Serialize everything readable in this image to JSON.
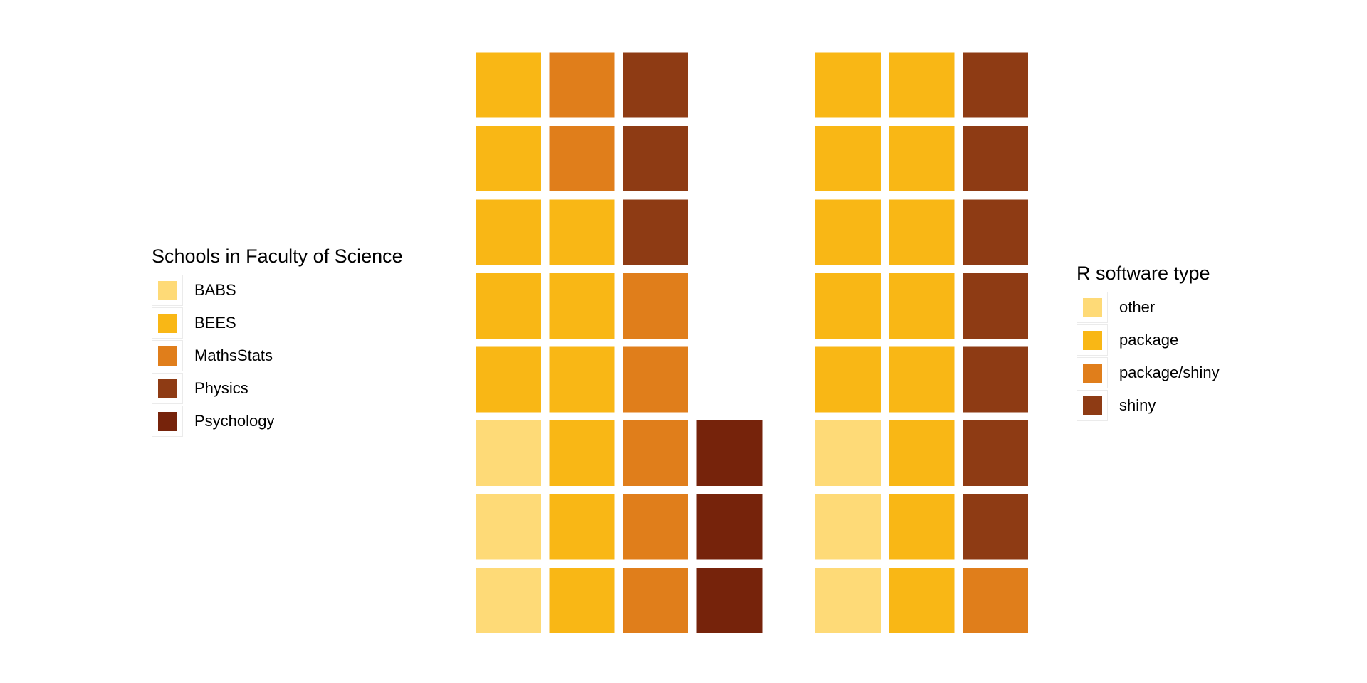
{
  "chart_data": [
    {
      "type": "waffle",
      "legend": {
        "title": "Schools in Faculty of Science",
        "placement": "left",
        "items": [
          {
            "label": "BABS",
            "color": "#FEDA77"
          },
          {
            "label": "BEES",
            "color": "#F9B715"
          },
          {
            "label": "MathsStats",
            "color": "#E07E1B"
          },
          {
            "label": "Physics",
            "color": "#8E3B14"
          },
          {
            "label": "Psychology",
            "color": "#76230B"
          }
        ]
      },
      "rows": 8,
      "fill_order": "column-wise, bottom to top",
      "categories": [
        "BABS",
        "BEES",
        "MathsStats",
        "Physics",
        "Psychology"
      ],
      "values": [
        3,
        11,
        7,
        3,
        3
      ],
      "total": 27
    },
    {
      "type": "waffle",
      "legend": {
        "title": "R software type",
        "placement": "right",
        "items": [
          {
            "label": "other",
            "color": "#FEDA77"
          },
          {
            "label": "package",
            "color": "#F9B715"
          },
          {
            "label": "package/shiny",
            "color": "#E07E1B"
          },
          {
            "label": "shiny",
            "color": "#8E3B14"
          }
        ]
      },
      "rows": 8,
      "fill_order": "column-wise, bottom to top",
      "categories": [
        "other",
        "package",
        "package/shiny",
        "shiny"
      ],
      "values": [
        3,
        13,
        1,
        7
      ],
      "total": 24
    }
  ]
}
